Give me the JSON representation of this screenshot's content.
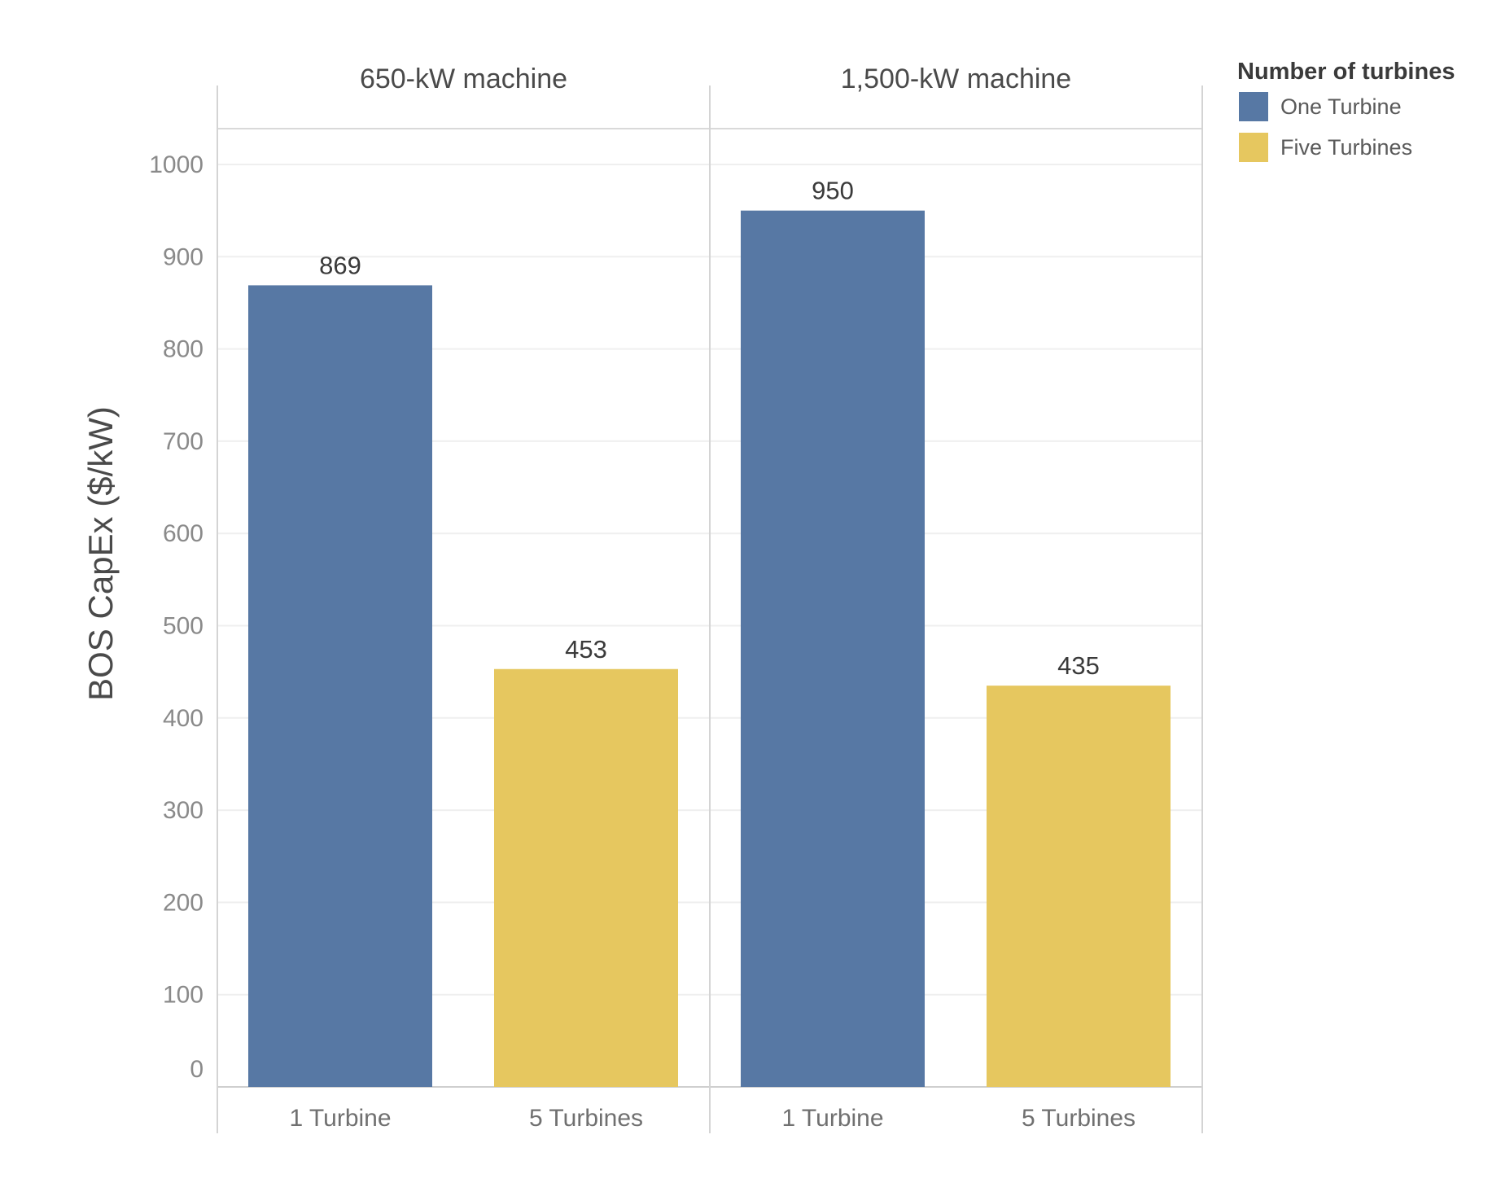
{
  "chart_data": {
    "type": "bar",
    "ylabel": "BOS CapEx ($/kW)",
    "ylim": [
      0,
      1000
    ],
    "yticks": [
      0,
      100,
      200,
      300,
      400,
      500,
      600,
      700,
      800,
      900,
      1000
    ],
    "grid": true,
    "categories": [
      "1 Turbine",
      "5 Turbines"
    ],
    "panels": [
      {
        "title": "650-kW machine",
        "bars": [
          {
            "category": "1 Turbine",
            "series": "One Turbine",
            "value": 869
          },
          {
            "category": "5 Turbines",
            "series": "Five Turbines",
            "value": 453
          }
        ]
      },
      {
        "title": "1,500-kW machine",
        "bars": [
          {
            "category": "1 Turbine",
            "series": "One Turbine",
            "value": 950
          },
          {
            "category": "5 Turbines",
            "series": "Five Turbines",
            "value": 435
          }
        ]
      }
    ],
    "legend": {
      "title": "Number of turbines",
      "placement": "top-right",
      "items": [
        {
          "name": "One Turbine",
          "color": "#5778a4"
        },
        {
          "name": "Five Turbines",
          "color": "#e6c75f"
        }
      ]
    }
  }
}
